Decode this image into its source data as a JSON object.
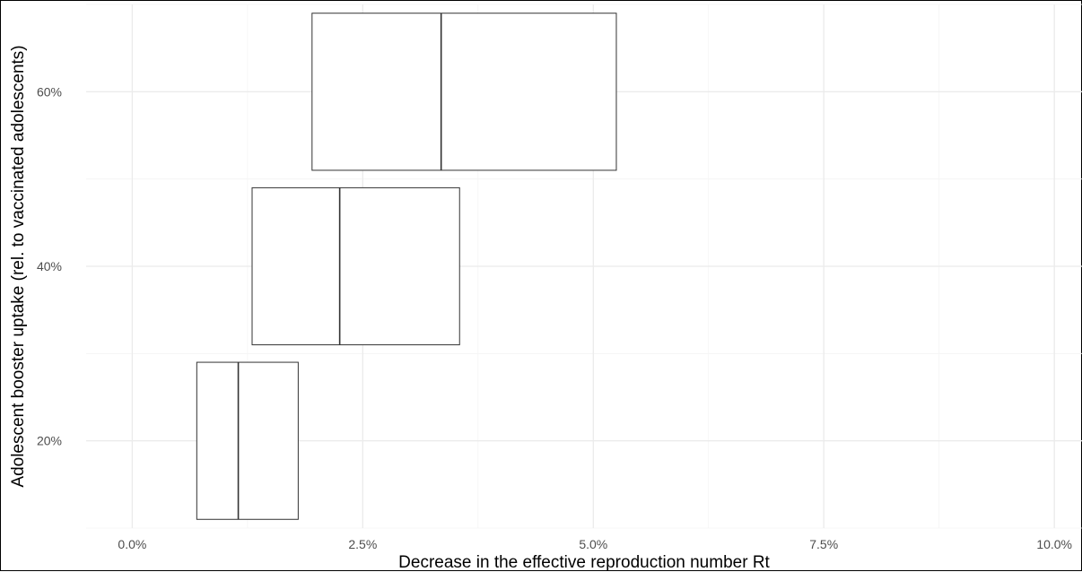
{
  "chart_data": {
    "type": "boxplot",
    "orientation": "horizontal",
    "title": "",
    "xlabel": "Decrease in the effective reproduction number Rt",
    "ylabel": "Adolescent booster uptake (rel. to vaccinated adolescents)",
    "xlim": [
      -0.5,
      10.3
    ],
    "ylim": [
      10,
      70
    ],
    "x_ticks": [
      {
        "value": 0,
        "label": "0.0%"
      },
      {
        "value": 2.5,
        "label": "2.5%"
      },
      {
        "value": 5,
        "label": "5.0%"
      },
      {
        "value": 7.5,
        "label": "7.5%"
      },
      {
        "value": 10,
        "label": "10.0%"
      }
    ],
    "y_ticks": [
      {
        "value": 20,
        "label": "20%"
      },
      {
        "value": 40,
        "label": "40%"
      },
      {
        "value": 60,
        "label": "60%"
      }
    ],
    "grid": true,
    "legend": "none",
    "boxes": [
      {
        "category": "20%",
        "y": 20,
        "lower": 0.7,
        "median": 1.15,
        "upper": 1.8
      },
      {
        "category": "40%",
        "y": 40,
        "lower": 1.3,
        "median": 2.25,
        "upper": 3.55
      },
      {
        "category": "60%",
        "y": 60,
        "lower": 1.95,
        "median": 3.35,
        "upper": 5.25
      }
    ]
  }
}
